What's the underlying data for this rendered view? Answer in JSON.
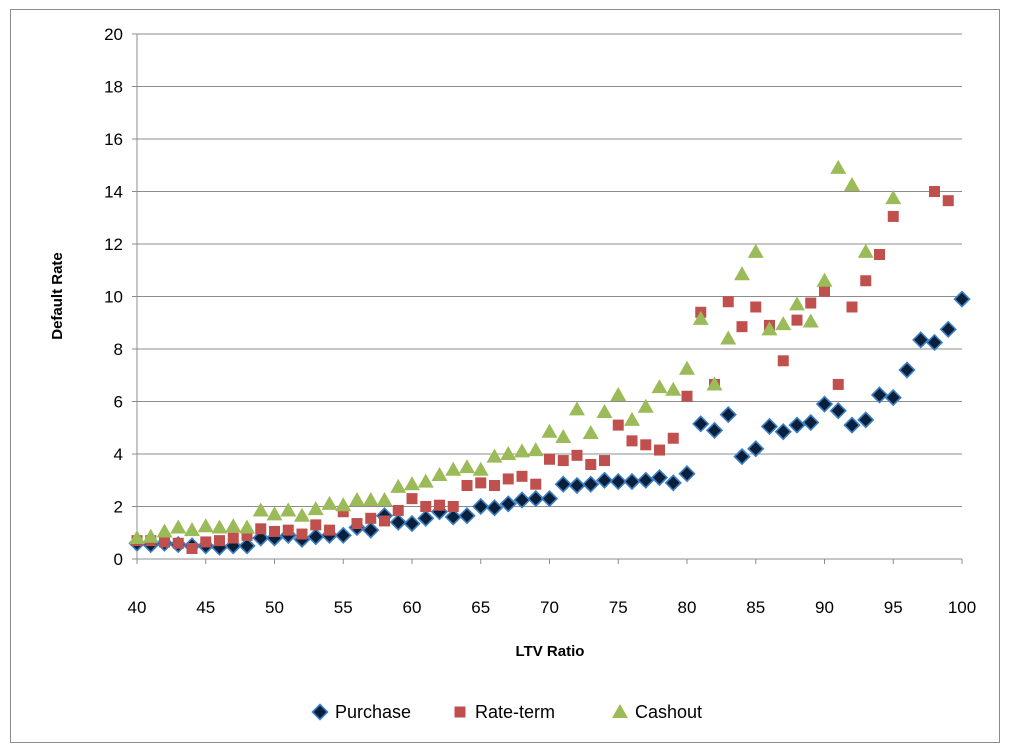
{
  "chart_data": {
    "type": "scatter",
    "title": "",
    "xlabel": "LTV Ratio",
    "ylabel": "Default Rate",
    "xlim": [
      40,
      100
    ],
    "ylim": [
      0,
      20
    ],
    "xticks": [
      40,
      45,
      50,
      55,
      60,
      65,
      70,
      75,
      80,
      85,
      90,
      95,
      100
    ],
    "yticks": [
      0,
      2,
      4,
      6,
      8,
      10,
      12,
      14,
      16,
      18,
      20
    ],
    "grid": "horizontal",
    "legend_position": "bottom",
    "series": [
      {
        "name": "Purchase",
        "marker": "diamond",
        "color": "#0a1f3a",
        "outline": "#3d7fc4",
        "points": [
          [
            40,
            0.6
          ],
          [
            41,
            0.55
          ],
          [
            42,
            0.6
          ],
          [
            43,
            0.55
          ],
          [
            44,
            0.5
          ],
          [
            45,
            0.5
          ],
          [
            46,
            0.45
          ],
          [
            47,
            0.5
          ],
          [
            48,
            0.5
          ],
          [
            49,
            0.8
          ],
          [
            50,
            0.8
          ],
          [
            51,
            0.9
          ],
          [
            52,
            0.75
          ],
          [
            53,
            0.85
          ],
          [
            54,
            0.9
          ],
          [
            55,
            0.9
          ],
          [
            56,
            1.2
          ],
          [
            57,
            1.1
          ],
          [
            58,
            1.65
          ],
          [
            59,
            1.4
          ],
          [
            60,
            1.35
          ],
          [
            61,
            1.55
          ],
          [
            62,
            1.8
          ],
          [
            63,
            1.6
          ],
          [
            64,
            1.65
          ],
          [
            65,
            2.0
          ],
          [
            66,
            1.95
          ],
          [
            67,
            2.1
          ],
          [
            68,
            2.25
          ],
          [
            69,
            2.3
          ],
          [
            70,
            2.3
          ],
          [
            71,
            2.85
          ],
          [
            72,
            2.8
          ],
          [
            73,
            2.85
          ],
          [
            74,
            3.0
          ],
          [
            75,
            2.95
          ],
          [
            76,
            2.95
          ],
          [
            77,
            3.0
          ],
          [
            78,
            3.1
          ],
          [
            79,
            2.9
          ],
          [
            80,
            3.25
          ],
          [
            81,
            5.15
          ],
          [
            82,
            4.9
          ],
          [
            83,
            5.5
          ],
          [
            84,
            3.9
          ],
          [
            85,
            4.2
          ],
          [
            86,
            5.05
          ],
          [
            87,
            4.85
          ],
          [
            88,
            5.1
          ],
          [
            89,
            5.2
          ],
          [
            90,
            5.9
          ],
          [
            91,
            5.65
          ],
          [
            92,
            5.1
          ],
          [
            93,
            5.3
          ],
          [
            94,
            6.25
          ],
          [
            95,
            6.15
          ],
          [
            96,
            7.2
          ],
          [
            97,
            8.35
          ],
          [
            98,
            8.25
          ],
          [
            99,
            8.75
          ],
          [
            100,
            9.9
          ]
        ]
      },
      {
        "name": "Rate-term",
        "marker": "square",
        "color": "#c0504d",
        "points": [
          [
            40,
            0.7
          ],
          [
            41,
            0.7
          ],
          [
            42,
            0.65
          ],
          [
            43,
            0.6
          ],
          [
            44,
            0.4
          ],
          [
            45,
            0.65
          ],
          [
            46,
            0.7
          ],
          [
            47,
            0.8
          ],
          [
            48,
            0.9
          ],
          [
            49,
            1.15
          ],
          [
            50,
            1.05
          ],
          [
            51,
            1.1
          ],
          [
            52,
            0.95
          ],
          [
            53,
            1.3
          ],
          [
            54,
            1.1
          ],
          [
            55,
            1.8
          ],
          [
            56,
            1.35
          ],
          [
            57,
            1.55
          ],
          [
            58,
            1.45
          ],
          [
            59,
            1.85
          ],
          [
            60,
            2.3
          ],
          [
            61,
            2.0
          ],
          [
            62,
            2.05
          ],
          [
            63,
            2.0
          ],
          [
            64,
            2.8
          ],
          [
            65,
            2.9
          ],
          [
            66,
            2.8
          ],
          [
            67,
            3.05
          ],
          [
            68,
            3.15
          ],
          [
            69,
            2.85
          ],
          [
            70,
            3.8
          ],
          [
            71,
            3.75
          ],
          [
            72,
            3.95
          ],
          [
            73,
            3.6
          ],
          [
            74,
            3.75
          ],
          [
            75,
            5.1
          ],
          [
            76,
            4.5
          ],
          [
            77,
            4.35
          ],
          [
            78,
            4.15
          ],
          [
            79,
            4.6
          ],
          [
            80,
            6.2
          ],
          [
            81,
            9.4
          ],
          [
            82,
            6.65
          ],
          [
            83,
            9.8
          ],
          [
            84,
            8.85
          ],
          [
            85,
            9.6
          ],
          [
            86,
            8.9
          ],
          [
            87,
            7.55
          ],
          [
            88,
            9.1
          ],
          [
            89,
            9.75
          ],
          [
            90,
            10.2
          ],
          [
            91,
            6.65
          ],
          [
            92,
            9.6
          ],
          [
            93,
            10.6
          ],
          [
            94,
            11.6
          ],
          [
            95,
            13.05
          ],
          [
            98,
            14.0
          ],
          [
            99,
            13.65
          ]
        ]
      },
      {
        "name": "Cashout",
        "marker": "triangle",
        "color": "#9bbb59",
        "points": [
          [
            40,
            0.8
          ],
          [
            41,
            0.85
          ],
          [
            42,
            1.05
          ],
          [
            43,
            1.2
          ],
          [
            44,
            1.1
          ],
          [
            45,
            1.25
          ],
          [
            46,
            1.2
          ],
          [
            47,
            1.25
          ],
          [
            48,
            1.2
          ],
          [
            49,
            1.85
          ],
          [
            50,
            1.7
          ],
          [
            51,
            1.85
          ],
          [
            52,
            1.65
          ],
          [
            53,
            1.9
          ],
          [
            54,
            2.1
          ],
          [
            55,
            2.05
          ],
          [
            56,
            2.25
          ],
          [
            57,
            2.25
          ],
          [
            58,
            2.25
          ],
          [
            59,
            2.75
          ],
          [
            60,
            2.85
          ],
          [
            61,
            2.95
          ],
          [
            62,
            3.2
          ],
          [
            63,
            3.4
          ],
          [
            64,
            3.5
          ],
          [
            65,
            3.4
          ],
          [
            66,
            3.9
          ],
          [
            67,
            4.0
          ],
          [
            68,
            4.1
          ],
          [
            69,
            4.15
          ],
          [
            70,
            4.85
          ],
          [
            71,
            4.65
          ],
          [
            72,
            5.7
          ],
          [
            73,
            4.8
          ],
          [
            74,
            5.6
          ],
          [
            75,
            6.25
          ],
          [
            76,
            5.3
          ],
          [
            77,
            5.8
          ],
          [
            78,
            6.55
          ],
          [
            79,
            6.45
          ],
          [
            80,
            7.25
          ],
          [
            81,
            9.15
          ],
          [
            82,
            6.65
          ],
          [
            83,
            8.4
          ],
          [
            84,
            10.85
          ],
          [
            85,
            11.7
          ],
          [
            86,
            8.75
          ],
          [
            87,
            8.95
          ],
          [
            88,
            9.7
          ],
          [
            89,
            9.05
          ],
          [
            90,
            10.6
          ],
          [
            91,
            14.9
          ],
          [
            92,
            14.25
          ],
          [
            93,
            11.7
          ],
          [
            95,
            13.75
          ]
        ]
      }
    ]
  }
}
